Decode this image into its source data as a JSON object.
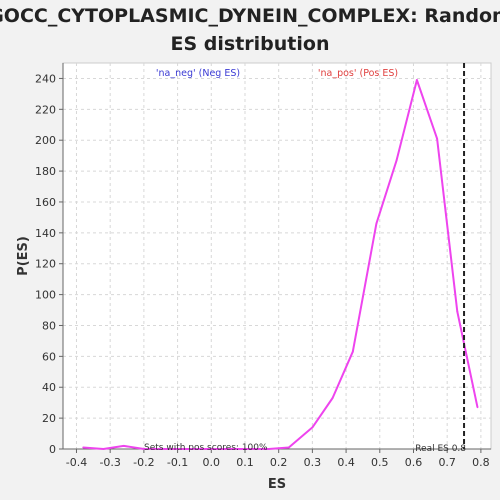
{
  "chart_data": {
    "type": "line",
    "title_line1": "GOCC_CYTOPLASMIC_DYNEIN_COMPLEX: Random",
    "title_line2": "ES distribution",
    "xlabel": "ES",
    "ylabel": "P(ES)",
    "xlim": [
      -0.44,
      0.83
    ],
    "ylim": [
      0,
      250
    ],
    "x_ticks": [
      "-0.4",
      "-0.3",
      "-0.2",
      "-0.1",
      "0.0",
      "0.1",
      "0.2",
      "0.3",
      "0.4",
      "0.5",
      "0.6",
      "0.7",
      "0.8"
    ],
    "x_tick_values": [
      -0.4,
      -0.3,
      -0.2,
      -0.1,
      0.0,
      0.1,
      0.2,
      0.3,
      0.4,
      0.5,
      0.6,
      0.7,
      0.8
    ],
    "y_ticks": [
      "0",
      "20",
      "40",
      "60",
      "80",
      "100",
      "120",
      "140",
      "160",
      "180",
      "200",
      "220",
      "240"
    ],
    "y_tick_values": [
      0,
      20,
      40,
      60,
      80,
      100,
      120,
      140,
      160,
      180,
      200,
      220,
      240
    ],
    "grid": true,
    "series": [
      {
        "color": "#ee44ee",
        "x": [
          -0.38,
          -0.32,
          -0.26,
          -0.2,
          -0.14,
          -0.08,
          -0.02,
          0.04,
          0.1,
          0.17,
          0.23,
          0.3,
          0.36,
          0.42,
          0.49,
          0.55,
          0.61,
          0.67,
          0.73,
          0.79
        ],
        "y": [
          1,
          0,
          2,
          0,
          0,
          0,
          0,
          0,
          0,
          0,
          1,
          14,
          33,
          63,
          146,
          187,
          239,
          201,
          89,
          27
        ]
      }
    ],
    "legend": [
      {
        "label": "'na_neg' (Neg ES)",
        "color": "#3b3bd4"
      },
      {
        "label": "'na_pos' (Pos ES)",
        "color": "#e0403f"
      }
    ],
    "real_es": 0.75,
    "real_es_label": "Real ES 0.8",
    "annotation": "Sets with pos scores: 100%"
  }
}
